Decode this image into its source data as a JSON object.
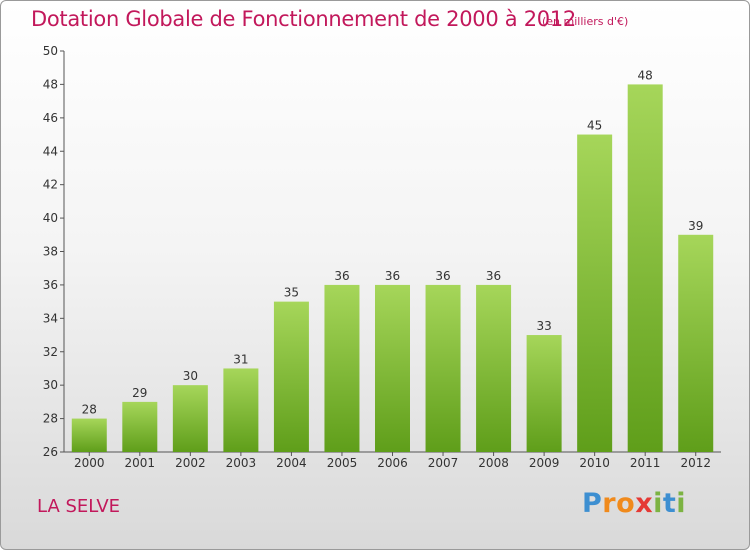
{
  "title": "Dotation Globale de Fonctionnement de 2000 à 2012",
  "unit_note": "(en milliers d'€)",
  "place_name": "LA SELVE",
  "logo": {
    "text": "Proxiti",
    "letters": [
      "P",
      "r",
      "o",
      "x",
      "i",
      "t",
      "i"
    ]
  },
  "colors": {
    "title": "#c2185b",
    "bar_light": "#a6d65a",
    "bar_dark": "#5f9e1a"
  },
  "chart_data": {
    "type": "bar",
    "categories": [
      "2000",
      "2001",
      "2002",
      "2003",
      "2004",
      "2005",
      "2006",
      "2007",
      "2008",
      "2009",
      "2010",
      "2011",
      "2012"
    ],
    "values": [
      28,
      29,
      30,
      31,
      35,
      36,
      36,
      36,
      36,
      33,
      45,
      48,
      39
    ],
    "ylim": [
      26,
      50
    ],
    "yticks": [
      26,
      28,
      30,
      32,
      34,
      36,
      38,
      40,
      42,
      44,
      46,
      48,
      50
    ],
    "grid": false,
    "legend": "none",
    "data_labels": true
  }
}
